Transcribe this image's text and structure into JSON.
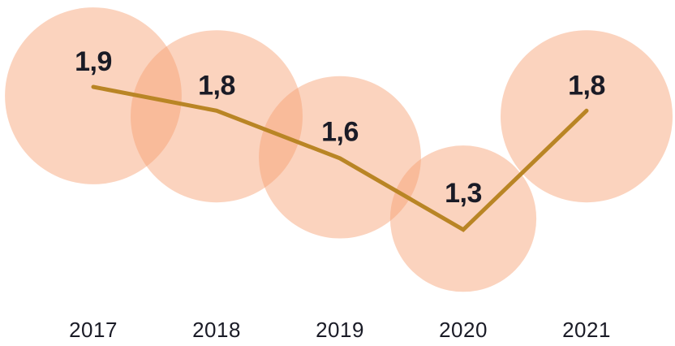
{
  "chart_data": {
    "type": "line",
    "subtype": "line-with-proportional-bubble-markers",
    "title": "",
    "xlabel": "",
    "ylabel": "",
    "categories": [
      "2017",
      "2018",
      "2019",
      "2020",
      "2021"
    ],
    "values": [
      1.9,
      1.8,
      1.6,
      1.3,
      1.8
    ],
    "point_labels": [
      "1,9",
      "1,8",
      "1,6",
      "1,3",
      "1,8"
    ],
    "decimal_separator": ",",
    "bubble_area_proportional_to_value": true,
    "grid": false,
    "legend": "none",
    "y_axis": "hidden",
    "colors": {
      "bubble_fill": "#F79D6E",
      "bubble_opacity": 0.45,
      "line": "#B98525",
      "value_label": "#1A1B26",
      "axis_label": "#1A1B26",
      "background": "#FFFFFF"
    }
  }
}
